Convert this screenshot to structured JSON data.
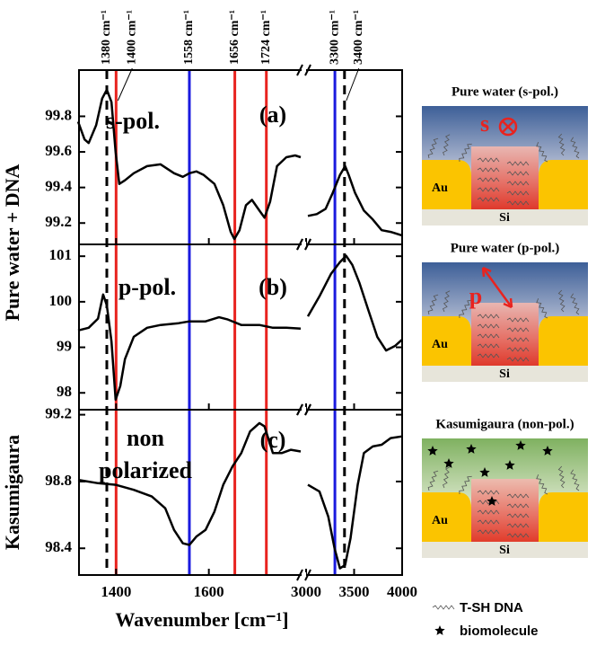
{
  "chart_data": {
    "type": "line",
    "xlabel": "Wavenumber [cm⁻¹]",
    "x_segments": [
      {
        "xlim": [
          1320,
          1800
        ],
        "xticks": [
          1400,
          1600
        ]
      },
      {
        "xlim": [
          3000,
          4000
        ],
        "xticks": [
          3000,
          3500,
          4000
        ]
      }
    ],
    "line_color": "#000000",
    "markers": [
      {
        "value": 1380,
        "label": "1380 cm⁻¹",
        "color": "#000000",
        "dashed": true
      },
      {
        "value": 1400,
        "label": "1400 cm⁻¹",
        "color": "#e8231f",
        "dashed": false
      },
      {
        "value": 1558,
        "label": "1558 cm⁻¹",
        "color": "#1a1adf",
        "dashed": false
      },
      {
        "value": 1656,
        "label": "1656 cm⁻¹",
        "color": "#e8231f",
        "dashed": false
      },
      {
        "value": 1724,
        "label": "1724 cm⁻¹",
        "color": "#e8231f",
        "dashed": false
      },
      {
        "value": 3300,
        "label": "3300 cm⁻¹",
        "color": "#1a1adf",
        "dashed": false
      },
      {
        "value": 3400,
        "label": "3400 cm⁻¹",
        "color": "#000000",
        "dashed": true
      }
    ],
    "ylabels": [
      "Pure water + DNA",
      "Kasumigaura"
    ],
    "panels": [
      {
        "label": "(a)",
        "annotation": [
          "s-pol."
        ],
        "ylim": [
          99.08,
          100.06
        ],
        "yticks": [
          99.2,
          99.4,
          99.6,
          99.8
        ],
        "segments": [
          {
            "x": [
              1318,
              1332,
              1341,
              1357,
              1370,
              1380,
              1390,
              1399,
              1407,
              1419,
              1438,
              1467,
              1496,
              1525,
              1544,
              1558,
              1573,
              1589,
              1612,
              1631,
              1647,
              1655,
              1666,
              1680,
              1693,
              1709,
              1720,
              1732,
              1747,
              1767,
              1786,
              1798
            ],
            "values": [
              99.77,
              99.67,
              99.65,
              99.75,
              99.9,
              99.95,
              99.88,
              99.6,
              99.42,
              99.44,
              99.48,
              99.52,
              99.53,
              99.48,
              99.46,
              99.48,
              99.49,
              99.47,
              99.42,
              99.3,
              99.15,
              99.11,
              99.16,
              99.3,
              99.33,
              99.27,
              99.23,
              99.32,
              99.52,
              99.57,
              99.58,
              99.57
            ]
          },
          {
            "x": [
              3019,
              3111,
              3204,
              3278,
              3352,
              3407,
              3444,
              3509,
              3602,
              3694,
              3787,
              3880,
              4000
            ],
            "values": [
              99.24,
              99.25,
              99.28,
              99.37,
              99.47,
              99.52,
              99.47,
              99.37,
              99.27,
              99.22,
              99.16,
              99.15,
              99.13
            ]
          }
        ]
      },
      {
        "label": "(b)",
        "annotation": [
          "p-pol."
        ],
        "ylim": [
          97.63,
          101.26
        ],
        "yticks": [
          98,
          99,
          100,
          101
        ],
        "segments": [
          {
            "x": [
              1318,
              1341,
              1361,
              1372,
              1380,
              1390,
              1399,
              1409,
              1419,
              1438,
              1467,
              1496,
              1535,
              1558,
              1593,
              1622,
              1641,
              1670,
              1709,
              1738,
              1767,
              1798
            ],
            "values": [
              99.37,
              99.43,
              99.63,
              100.16,
              99.92,
              99.13,
              97.85,
              98.15,
              98.74,
              99.23,
              99.43,
              99.49,
              99.53,
              99.57,
              99.57,
              99.66,
              99.61,
              99.49,
              99.49,
              99.43,
              99.43,
              99.41
            ]
          },
          {
            "x": [
              3019,
              3139,
              3259,
              3352,
              3417,
              3481,
              3556,
              3648,
              3741,
              3833,
              3926,
              4000
            ],
            "values": [
              99.68,
              100.12,
              100.61,
              100.87,
              101.01,
              100.81,
              100.41,
              99.82,
              99.23,
              98.93,
              99.03,
              99.17
            ]
          }
        ]
      },
      {
        "label": "(c)",
        "annotation": [
          "non",
          "polarized"
        ],
        "ylim": [
          98.24,
          99.23
        ],
        "yticks": [
          98.4,
          98.8,
          99.2
        ],
        "segments": [
          {
            "x": [
              1318,
              1361,
              1399,
              1438,
              1477,
              1506,
              1525,
              1544,
              1558,
              1573,
              1593,
              1612,
              1631,
              1651,
              1670,
              1689,
              1709,
              1720,
              1738,
              1757,
              1777,
              1798
            ],
            "values": [
              98.81,
              98.79,
              98.78,
              98.75,
              98.71,
              98.64,
              98.51,
              98.43,
              98.42,
              98.47,
              98.51,
              98.62,
              98.78,
              98.89,
              98.97,
              99.1,
              99.15,
              99.13,
              98.97,
              98.97,
              98.99,
              98.98
            ]
          },
          {
            "x": [
              3019,
              3139,
              3231,
              3296,
              3352,
              3407,
              3463,
              3537,
              3602,
              3694,
              3787,
              3880,
              4000
            ],
            "values": [
              98.78,
              98.74,
              98.59,
              98.4,
              98.28,
              98.3,
              98.46,
              98.78,
              98.97,
              99.01,
              99.02,
              99.06,
              99.07
            ]
          }
        ]
      }
    ]
  },
  "diagrams": [
    {
      "title": "Pure water (s-pol.)",
      "au": "Au",
      "si": "Si",
      "pol": "s"
    },
    {
      "title": "Pure water (p-pol.)",
      "au": "Au",
      "si": "Si",
      "pol": "p"
    },
    {
      "title": "Kasumigaura (non-pol.)",
      "au": "Au",
      "si": "Si"
    }
  ],
  "legend": [
    "T-SH DNA",
    "biomolecule"
  ]
}
